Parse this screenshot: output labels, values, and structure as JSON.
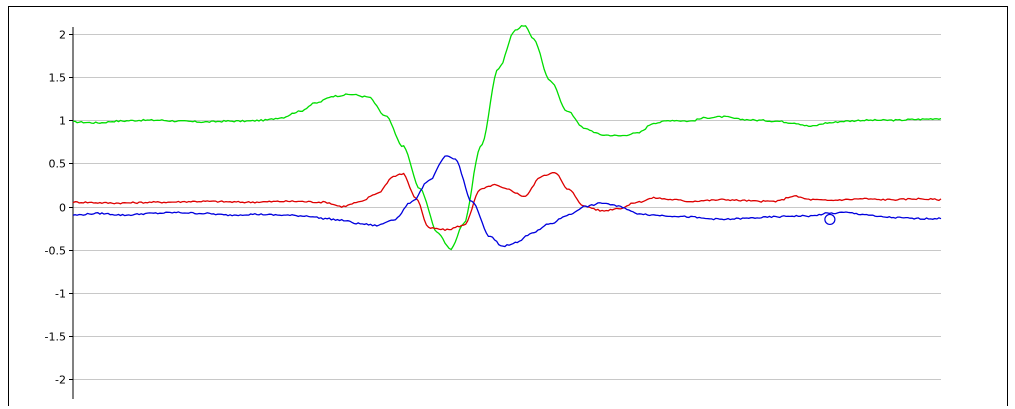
{
  "chart_data": {
    "type": "line",
    "title": "",
    "xlabel": "",
    "ylabel": "",
    "ylim": [
      -2,
      2
    ],
    "yticks": [
      {
        "value": 2,
        "label": "2"
      },
      {
        "value": 1.5,
        "label": "1.5"
      },
      {
        "value": 1,
        "label": "1"
      },
      {
        "value": 0.5,
        "label": "0.5"
      },
      {
        "value": 0,
        "label": "0"
      },
      {
        "value": -0.5,
        "label": "-0.5"
      },
      {
        "value": -1,
        "label": "-1"
      },
      {
        "value": -1.5,
        "label": "-1.5"
      },
      {
        "value": -2,
        "label": "-2"
      }
    ],
    "grid": true,
    "x_range": [
      0,
      100
    ],
    "series": [
      {
        "color": "#00dd00",
        "points": [
          [
            0,
            0.98
          ],
          [
            3,
            0.97
          ],
          [
            5,
            0.99
          ],
          [
            8,
            1.0
          ],
          [
            10,
            1.0
          ],
          [
            12,
            0.99
          ],
          [
            15,
            0.98
          ],
          [
            18,
            0.99
          ],
          [
            20,
            0.99
          ],
          [
            22,
            1.0
          ],
          [
            24,
            1.03
          ],
          [
            26,
            1.1
          ],
          [
            28,
            1.2
          ],
          [
            30,
            1.28
          ],
          [
            32,
            1.3
          ],
          [
            34,
            1.27
          ],
          [
            36,
            1.05
          ],
          [
            38,
            0.7
          ],
          [
            40,
            0.2
          ],
          [
            42,
            -0.3
          ],
          [
            43.5,
            -0.5
          ],
          [
            45,
            -0.2
          ],
          [
            47,
            0.7
          ],
          [
            49,
            1.6
          ],
          [
            51,
            2.05
          ],
          [
            52,
            2.1
          ],
          [
            53,
            1.95
          ],
          [
            55,
            1.45
          ],
          [
            57,
            1.1
          ],
          [
            59,
            0.9
          ],
          [
            61,
            0.83
          ],
          [
            63,
            0.82
          ],
          [
            65,
            0.85
          ],
          [
            67,
            0.97
          ],
          [
            69,
            1.0
          ],
          [
            71,
            0.99
          ],
          [
            73,
            1.03
          ],
          [
            75,
            1.04
          ],
          [
            77,
            1.01
          ],
          [
            79,
            1.0
          ],
          [
            81,
            0.99
          ],
          [
            83,
            0.97
          ],
          [
            85,
            0.93
          ],
          [
            87,
            0.97
          ],
          [
            89,
            0.99
          ],
          [
            91,
            1.0
          ],
          [
            93,
            1.0
          ],
          [
            95,
            1.0
          ],
          [
            97,
            1.01
          ],
          [
            100,
            1.02
          ]
        ]
      },
      {
        "color": "#dd0000",
        "points": [
          [
            0,
            0.05
          ],
          [
            5,
            0.04
          ],
          [
            10,
            0.05
          ],
          [
            15,
            0.06
          ],
          [
            20,
            0.05
          ],
          [
            25,
            0.06
          ],
          [
            29,
            0.05
          ],
          [
            31,
            0.0
          ],
          [
            33,
            0.05
          ],
          [
            35,
            0.15
          ],
          [
            37,
            0.35
          ],
          [
            38,
            0.38
          ],
          [
            39.5,
            0.1
          ],
          [
            41,
            -0.25
          ],
          [
            43,
            -0.27
          ],
          [
            45,
            -0.22
          ],
          [
            47,
            0.2
          ],
          [
            48.5,
            0.25
          ],
          [
            50,
            0.2
          ],
          [
            52,
            0.12
          ],
          [
            54,
            0.35
          ],
          [
            55.5,
            0.4
          ],
          [
            57,
            0.2
          ],
          [
            59,
            0.0
          ],
          [
            61,
            -0.05
          ],
          [
            63,
            -0.02
          ],
          [
            65,
            0.05
          ],
          [
            67,
            0.1
          ],
          [
            69,
            0.08
          ],
          [
            71,
            0.06
          ],
          [
            73,
            0.07
          ],
          [
            75,
            0.08
          ],
          [
            77,
            0.07
          ],
          [
            79,
            0.06
          ],
          [
            81,
            0.06
          ],
          [
            83,
            0.12
          ],
          [
            85,
            0.08
          ],
          [
            87,
            0.07
          ],
          [
            89,
            0.08
          ],
          [
            91,
            0.09
          ],
          [
            93,
            0.08
          ],
          [
            95,
            0.08
          ],
          [
            97,
            0.09
          ],
          [
            100,
            0.08
          ]
        ]
      },
      {
        "color": "#0000dd",
        "points": [
          [
            0,
            -0.1
          ],
          [
            3,
            -0.08
          ],
          [
            6,
            -0.1
          ],
          [
            9,
            -0.08
          ],
          [
            12,
            -0.07
          ],
          [
            15,
            -0.08
          ],
          [
            18,
            -0.1
          ],
          [
            21,
            -0.09
          ],
          [
            24,
            -0.1
          ],
          [
            27,
            -0.11
          ],
          [
            29,
            -0.14
          ],
          [
            31,
            -0.16
          ],
          [
            33,
            -0.2
          ],
          [
            35,
            -0.22
          ],
          [
            37,
            -0.15
          ],
          [
            39,
            0.05
          ],
          [
            41,
            0.3
          ],
          [
            43,
            0.58
          ],
          [
            44,
            0.55
          ],
          [
            46,
            0.05
          ],
          [
            48,
            -0.35
          ],
          [
            49.5,
            -0.46
          ],
          [
            51,
            -0.42
          ],
          [
            53,
            -0.3
          ],
          [
            55,
            -0.2
          ],
          [
            57,
            -0.1
          ],
          [
            59,
            0.0
          ],
          [
            61,
            0.04
          ],
          [
            63,
            0.0
          ],
          [
            65,
            -0.08
          ],
          [
            67,
            -0.1
          ],
          [
            69,
            -0.11
          ],
          [
            71,
            -0.12
          ],
          [
            73,
            -0.14
          ],
          [
            75,
            -0.15
          ],
          [
            77,
            -0.14
          ],
          [
            79,
            -0.13
          ],
          [
            81,
            -0.12
          ],
          [
            83,
            -0.11
          ],
          [
            85,
            -0.11
          ],
          [
            87,
            -0.08
          ],
          [
            89,
            -0.07
          ],
          [
            91,
            -0.09
          ],
          [
            93,
            -0.12
          ],
          [
            95,
            -0.13
          ],
          [
            97,
            -0.14
          ],
          [
            100,
            -0.14
          ]
        ]
      }
    ],
    "marker": {
      "x": 87.2,
      "y": -0.15,
      "color": "#0000dd"
    }
  }
}
